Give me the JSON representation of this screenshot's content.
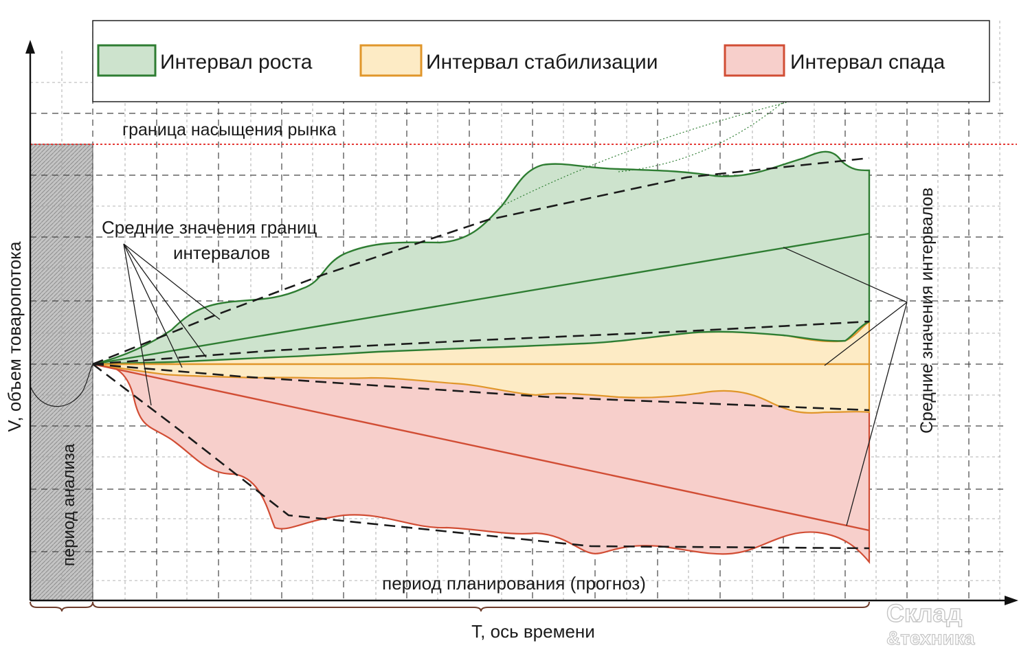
{
  "legend": {
    "items": [
      {
        "label": "Интервал роста",
        "fill": "#cde3cd",
        "stroke": "#2e7d32"
      },
      {
        "label": "Интервал стабилизации",
        "fill": "#fdebc5",
        "stroke": "#e0962a"
      },
      {
        "label": "Интервал спада",
        "fill": "#f7cfcb",
        "stroke": "#d14d34"
      }
    ]
  },
  "labels": {
    "y_axis": "V, объем товаропотока",
    "x_axis": "T, ось времени",
    "saturation": "граница насыщения рынка",
    "analysis_period": "период анализа",
    "planning_period": "период планирования (прогноз)",
    "mean_bounds_line1": "Средние значения границ",
    "mean_bounds_line2": "интервалов",
    "mean_intervals": "Средние значения интервалов"
  },
  "logo": {
    "line1": "Склад",
    "line2": "&техника"
  },
  "colors": {
    "saturation_line": "#e53935",
    "growth": "#2e7d32",
    "stabilization": "#e0962a",
    "decline": "#d14d34",
    "analysis_fill": "#bdbdbd"
  }
}
